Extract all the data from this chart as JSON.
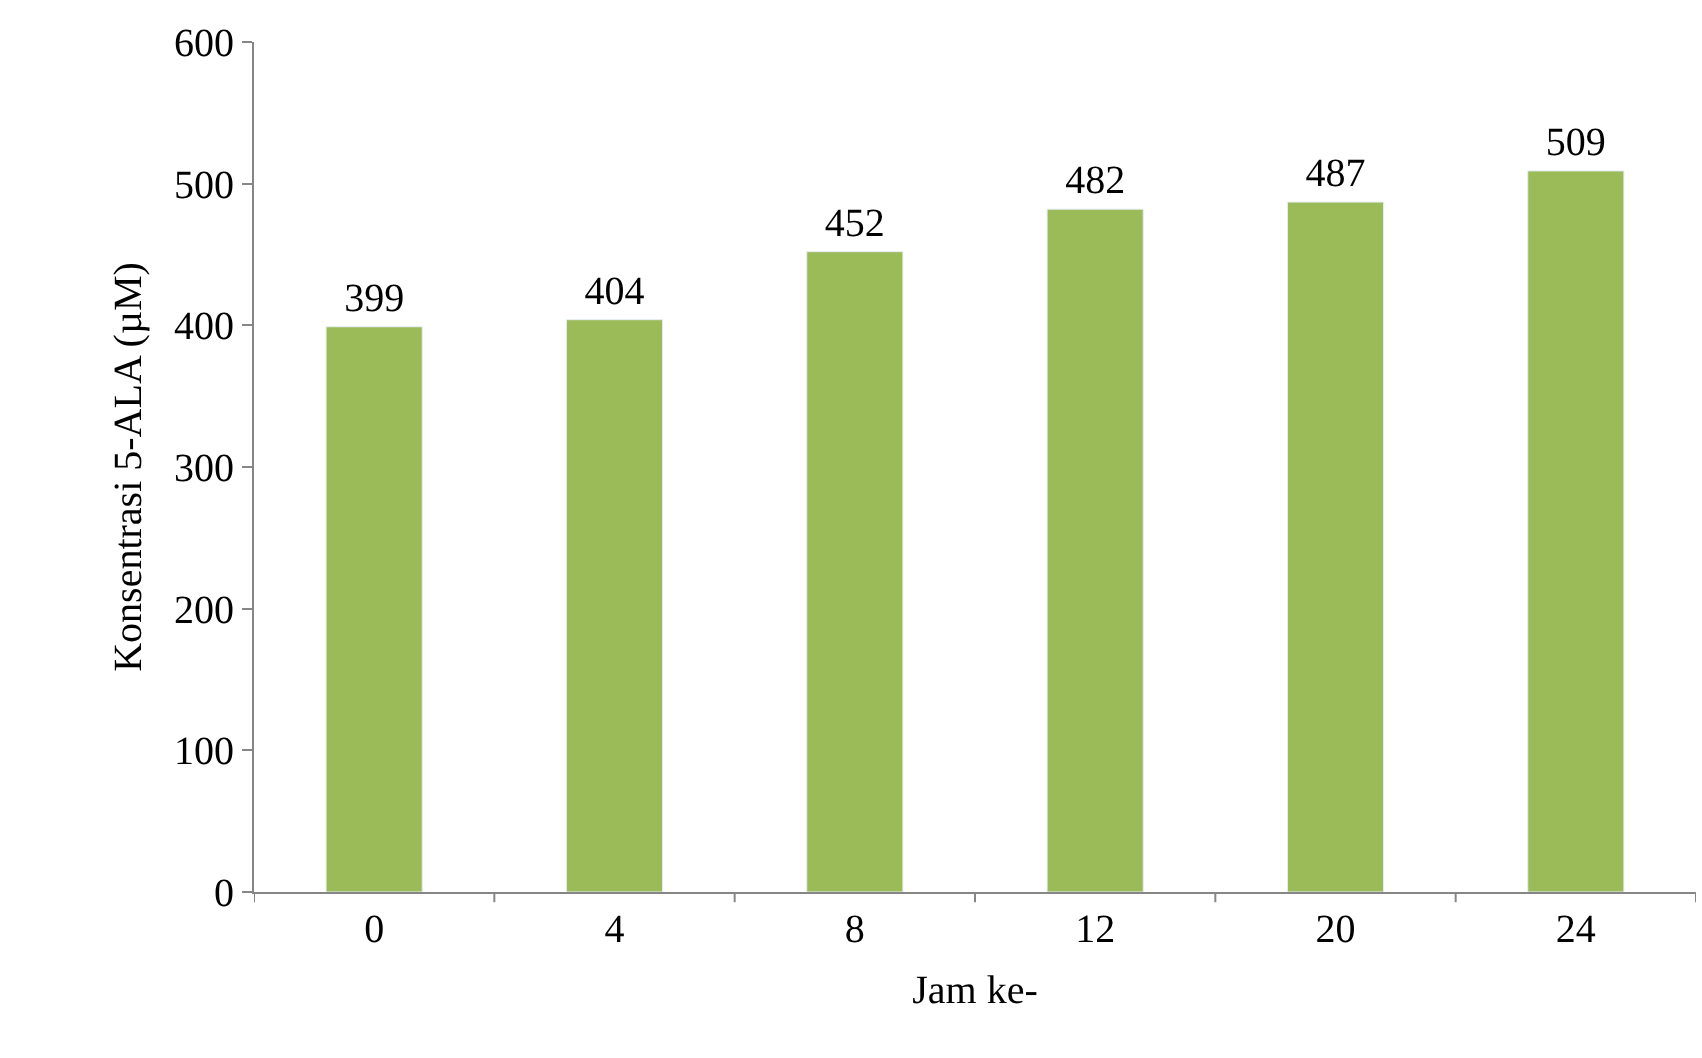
{
  "chart_data": {
    "type": "bar",
    "xlabel": "Jam ke-",
    "ylabel": "Konsentrasi 5-ALA (µM)",
    "categories": [
      "0",
      "4",
      "8",
      "12",
      "20",
      "24"
    ],
    "values": [
      399,
      404,
      452,
      482,
      487,
      509
    ],
    "color": "#9bbb59",
    "ylim": [
      0,
      600
    ],
    "yticks": [
      0,
      100,
      200,
      300,
      400,
      500,
      600
    ],
    "data_labels": true
  }
}
